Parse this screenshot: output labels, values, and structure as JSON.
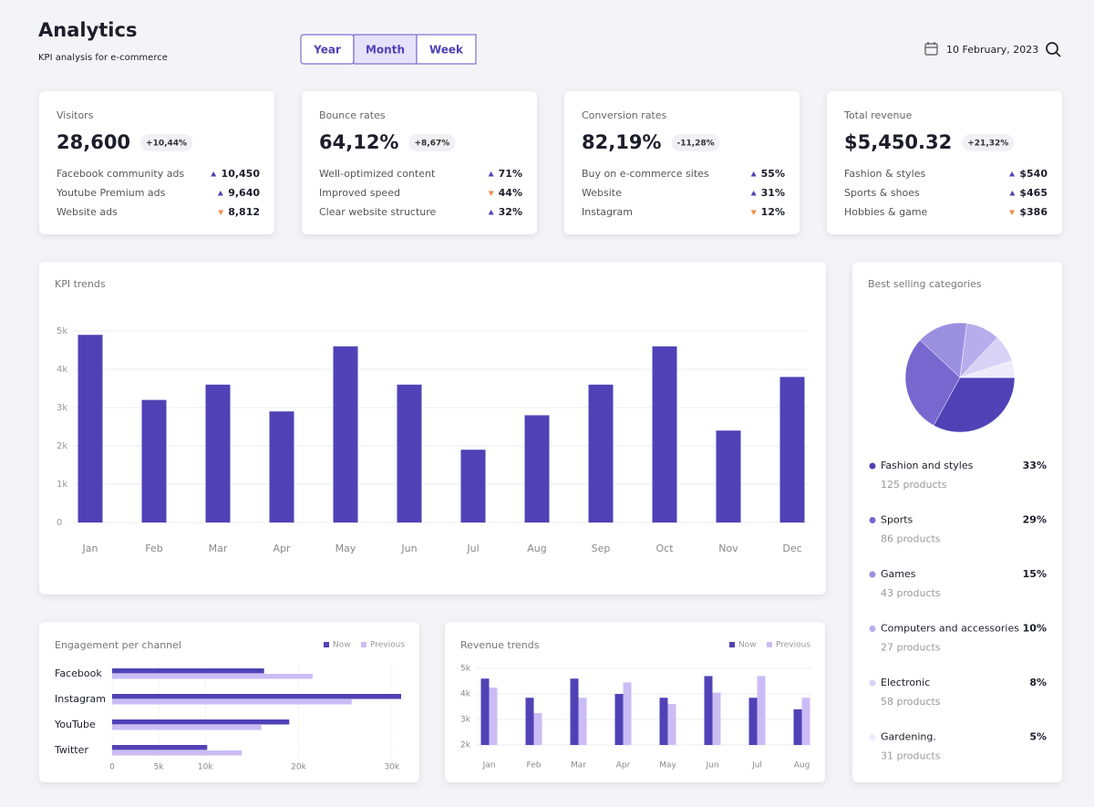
{
  "header": {
    "title": "Analytics",
    "subtitle": "KPI analysis for  e-commerce",
    "tabs": [
      "Year",
      "Month",
      "Week"
    ],
    "active_tab": 1,
    "date": "10 February, 2023"
  },
  "kpi_cards": [
    {
      "title": "Visitors",
      "value": "28,600",
      "change": "+10,44%",
      "rows": [
        {
          "label": "Facebook community ads",
          "value": "10,450",
          "trend": "up"
        },
        {
          "label": "Youtube Premium ads",
          "value": "9,640",
          "trend": "up"
        },
        {
          "label": "Website ads",
          "value": "8,812",
          "trend": "down"
        }
      ]
    },
    {
      "title": "Bounce rates",
      "value": "64,12%",
      "change": "+8,67%",
      "rows": [
        {
          "label": "Well-optimized content",
          "value": "71%",
          "trend": "up"
        },
        {
          "label": "Improved speed",
          "value": "44%",
          "trend": "down"
        },
        {
          "label": "Clear website structure",
          "value": "32%",
          "trend": "up"
        }
      ]
    },
    {
      "title": "Conversion rates",
      "value": "82,19%",
      "change": "-11,28%",
      "rows": [
        {
          "label": "Buy on e-commerce sites",
          "value": "55%",
          "trend": "up"
        },
        {
          "label": "Website",
          "value": "31%",
          "trend": "up"
        },
        {
          "label": "Instagram",
          "value": "12%",
          "trend": "down"
        }
      ]
    },
    {
      "title": "Total revenue",
      "value": "$5,450.32",
      "change": "+21,32%",
      "rows": [
        {
          "label": "Fashion & styles",
          "value": "$540",
          "trend": "up"
        },
        {
          "label": "Sports & shoes",
          "value": "$465",
          "trend": "up"
        },
        {
          "label": "Hobbies & game",
          "value": "$386",
          "trend": "down"
        }
      ]
    }
  ],
  "chart_data": [
    {
      "type": "bar",
      "title": "KPI trends",
      "categories": [
        "Jan",
        "Feb",
        "Mar",
        "Apr",
        "May",
        "Jun",
        "Jul",
        "Aug",
        "Sep",
        "Oct",
        "Nov",
        "Dec"
      ],
      "values": [
        4900,
        3200,
        3600,
        2900,
        4600,
        3600,
        1900,
        2800,
        3600,
        4600,
        2400,
        3800
      ],
      "color": "#5042b6",
      "ylim": [
        0,
        5000
      ],
      "yticks": [
        0,
        {
          "value": 1000,
          "label": "1k"
        },
        {
          "value": 2000,
          "label": "2k"
        },
        {
          "value": 3000,
          "label": "3k"
        },
        {
          "value": 4000,
          "label": "4k"
        },
        {
          "value": 5000,
          "label": "5k"
        }
      ],
      "grid": true
    },
    {
      "type": "pie",
      "title": "Best selling categories",
      "categories": [
        "Fashion and styles",
        "Sports",
        "Games",
        "Computers and accessories",
        "Electronic",
        "Gardening."
      ],
      "values": [
        33,
        29,
        15,
        10,
        8,
        5
      ],
      "value_labels": [
        "33%",
        "29%",
        "15%",
        "10%",
        "8%",
        "5%"
      ],
      "details": [
        "125 products",
        "86 products",
        "43 products",
        "27 products",
        "58 products",
        "31 products"
      ],
      "colors": [
        "#5042b6",
        "#7767cf",
        "#9b8fe0",
        "#b7adec",
        "#d8d2f6",
        "#eeecfa"
      ]
    },
    {
      "type": "hbar",
      "title": "Engagement per channel",
      "categories": [
        "Facebook",
        "Instagram",
        "YouTube",
        "Twitter"
      ],
      "series": [
        {
          "name": "Now",
          "color": "#5042b6",
          "values": [
            16300,
            31000,
            19000,
            10200
          ]
        },
        {
          "name": "Previous",
          "color": "#cbbcf6",
          "values": [
            21500,
            25700,
            16000,
            13900
          ]
        }
      ],
      "xlim": [
        0,
        31000
      ],
      "xticks": [
        0,
        {
          "value": 5000,
          "label": "5k"
        },
        {
          "value": 10000,
          "label": "10k"
        },
        {
          "value": 20000,
          "label": "20k"
        },
        {
          "value": 30000,
          "label": "30k"
        }
      ]
    },
    {
      "type": "grouped_bar",
      "title": "Revenue trends",
      "categories": [
        "Jan",
        "Feb",
        "Mar",
        "Apr",
        "May",
        "Jun",
        "Jul",
        "Aug"
      ],
      "series": [
        {
          "name": "Now",
          "color": "#5042b6",
          "values": [
            4600,
            3850,
            4600,
            4000,
            3850,
            4700,
            3850,
            3400
          ]
        },
        {
          "name": "Previous",
          "color": "#cbbcf6",
          "values": [
            4250,
            3250,
            3850,
            4450,
            3600,
            4050,
            4700,
            3850
          ]
        }
      ],
      "ylim": [
        2000,
        5000
      ],
      "yticks": [
        {
          "value": 2000,
          "label": "2k"
        },
        {
          "value": 3000,
          "label": "3k"
        },
        {
          "value": 4000,
          "label": "4k"
        },
        {
          "value": 5000,
          "label": "5k"
        }
      ]
    }
  ]
}
